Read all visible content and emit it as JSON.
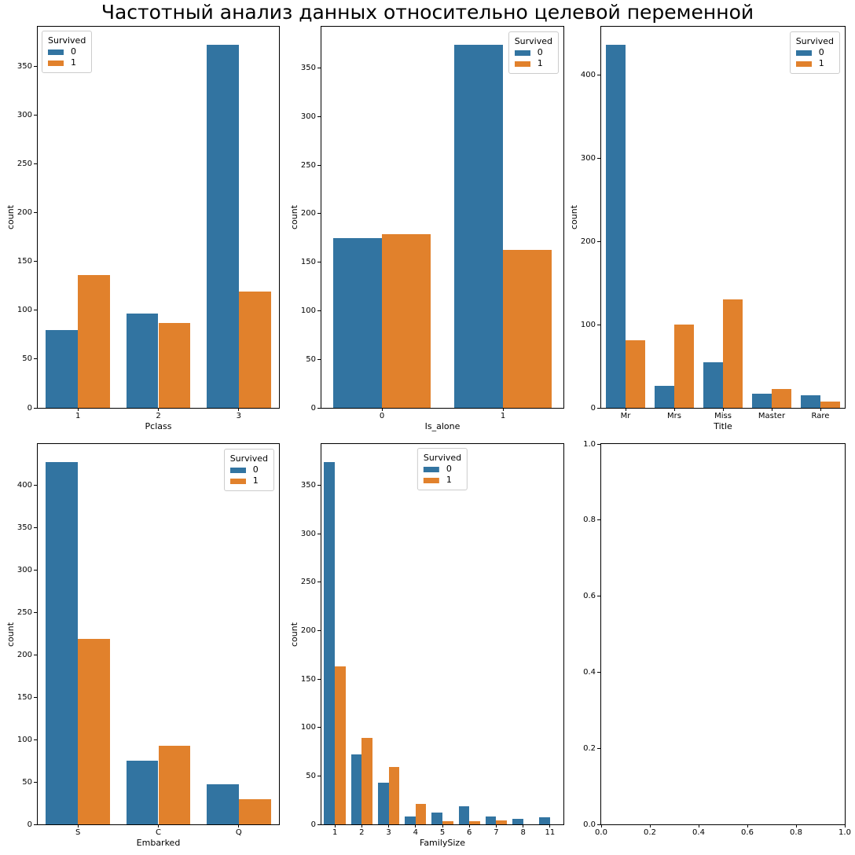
{
  "figure": {
    "title": "Частотный анализ данных относительно целевой переменной"
  },
  "palette": {
    "survived_0": "#3274a1",
    "survived_1": "#e1812c",
    "spine": "#000000",
    "text": "#000000"
  },
  "chart_data": [
    {
      "type": "bar",
      "name": "pclass",
      "xlabel": "Pclass",
      "ylabel": "count",
      "categories": [
        "1",
        "2",
        "3"
      ],
      "series": [
        {
          "name": "0",
          "color_key": "survived_0",
          "values": [
            80,
            97,
            372
          ]
        },
        {
          "name": "1",
          "color_key": "survived_1",
          "values": [
            136,
            87,
            119
          ]
        }
      ],
      "yticks": [
        0,
        50,
        100,
        150,
        200,
        250,
        300,
        350
      ],
      "ylim": [
        0,
        390.6
      ],
      "grid": false,
      "legend": {
        "title": "Survived",
        "entries": [
          "0",
          "1"
        ],
        "position": "upper-left"
      }
    },
    {
      "type": "bar",
      "name": "is-alone",
      "xlabel": "Is_alone",
      "ylabel": "count",
      "categories": [
        "0",
        "1"
      ],
      "series": [
        {
          "name": "0",
          "color_key": "survived_0",
          "values": [
            175,
            374
          ]
        },
        {
          "name": "1",
          "color_key": "survived_1",
          "values": [
            179,
            163
          ]
        }
      ],
      "yticks": [
        0,
        50,
        100,
        150,
        200,
        250,
        300,
        350
      ],
      "ylim": [
        0,
        392.7
      ],
      "grid": false,
      "legend": {
        "title": "Survived",
        "entries": [
          "0",
          "1"
        ],
        "position": "upper-right"
      }
    },
    {
      "type": "bar",
      "name": "title",
      "xlabel": "Title",
      "ylabel": "count",
      "categories": [
        "Mr",
        "Mrs",
        "Miss",
        "Master",
        "Rare"
      ],
      "series": [
        {
          "name": "0",
          "color_key": "survived_0",
          "values": [
            436,
            26,
            55,
            17,
            15
          ]
        },
        {
          "name": "1",
          "color_key": "survived_1",
          "values": [
            81,
            100,
            130,
            23,
            8
          ]
        }
      ],
      "yticks": [
        0,
        100,
        200,
        300,
        400
      ],
      "ylim": [
        0,
        457.8
      ],
      "grid": false,
      "legend": {
        "title": "Survived",
        "entries": [
          "0",
          "1"
        ],
        "position": "upper-right"
      }
    },
    {
      "type": "bar",
      "name": "embarked",
      "xlabel": "Embarked",
      "ylabel": "count",
      "categories": [
        "S",
        "C",
        "Q"
      ],
      "series": [
        {
          "name": "0",
          "color_key": "survived_0",
          "values": [
            427,
            75,
            47
          ]
        },
        {
          "name": "1",
          "color_key": "survived_1",
          "values": [
            219,
            93,
            30
          ]
        }
      ],
      "yticks": [
        0,
        50,
        100,
        150,
        200,
        250,
        300,
        350,
        400
      ],
      "ylim": [
        0,
        448.35
      ],
      "grid": false,
      "legend": {
        "title": "Survived",
        "entries": [
          "0",
          "1"
        ],
        "position": "upper-right"
      }
    },
    {
      "type": "bar",
      "name": "family-size",
      "xlabel": "FamilySize",
      "ylabel": "count",
      "categories": [
        "1",
        "2",
        "3",
        "4",
        "5",
        "6",
        "7",
        "8",
        "11"
      ],
      "series": [
        {
          "name": "0",
          "color_key": "survived_0",
          "values": [
            374,
            72,
            43,
            8,
            12,
            19,
            8,
            6,
            7
          ]
        },
        {
          "name": "1",
          "color_key": "survived_1",
          "values": [
            163,
            89,
            59,
            21,
            3,
            3,
            4,
            0,
            0
          ]
        }
      ],
      "yticks": [
        0,
        50,
        100,
        150,
        200,
        250,
        300,
        350
      ],
      "ylim": [
        0,
        392.7
      ],
      "grid": false,
      "legend": {
        "title": "Survived",
        "entries": [
          "0",
          "1"
        ],
        "position": "upper-center"
      }
    },
    {
      "type": "empty",
      "name": "empty",
      "xticks": [
        "0.0",
        "0.2",
        "0.4",
        "0.6",
        "0.8",
        "1.0"
      ],
      "yticks": [
        "0.0",
        "0.2",
        "0.4",
        "0.6",
        "0.8",
        "1.0"
      ],
      "xlim": [
        0,
        1
      ],
      "ylim": [
        0,
        1
      ],
      "grid": false
    }
  ]
}
